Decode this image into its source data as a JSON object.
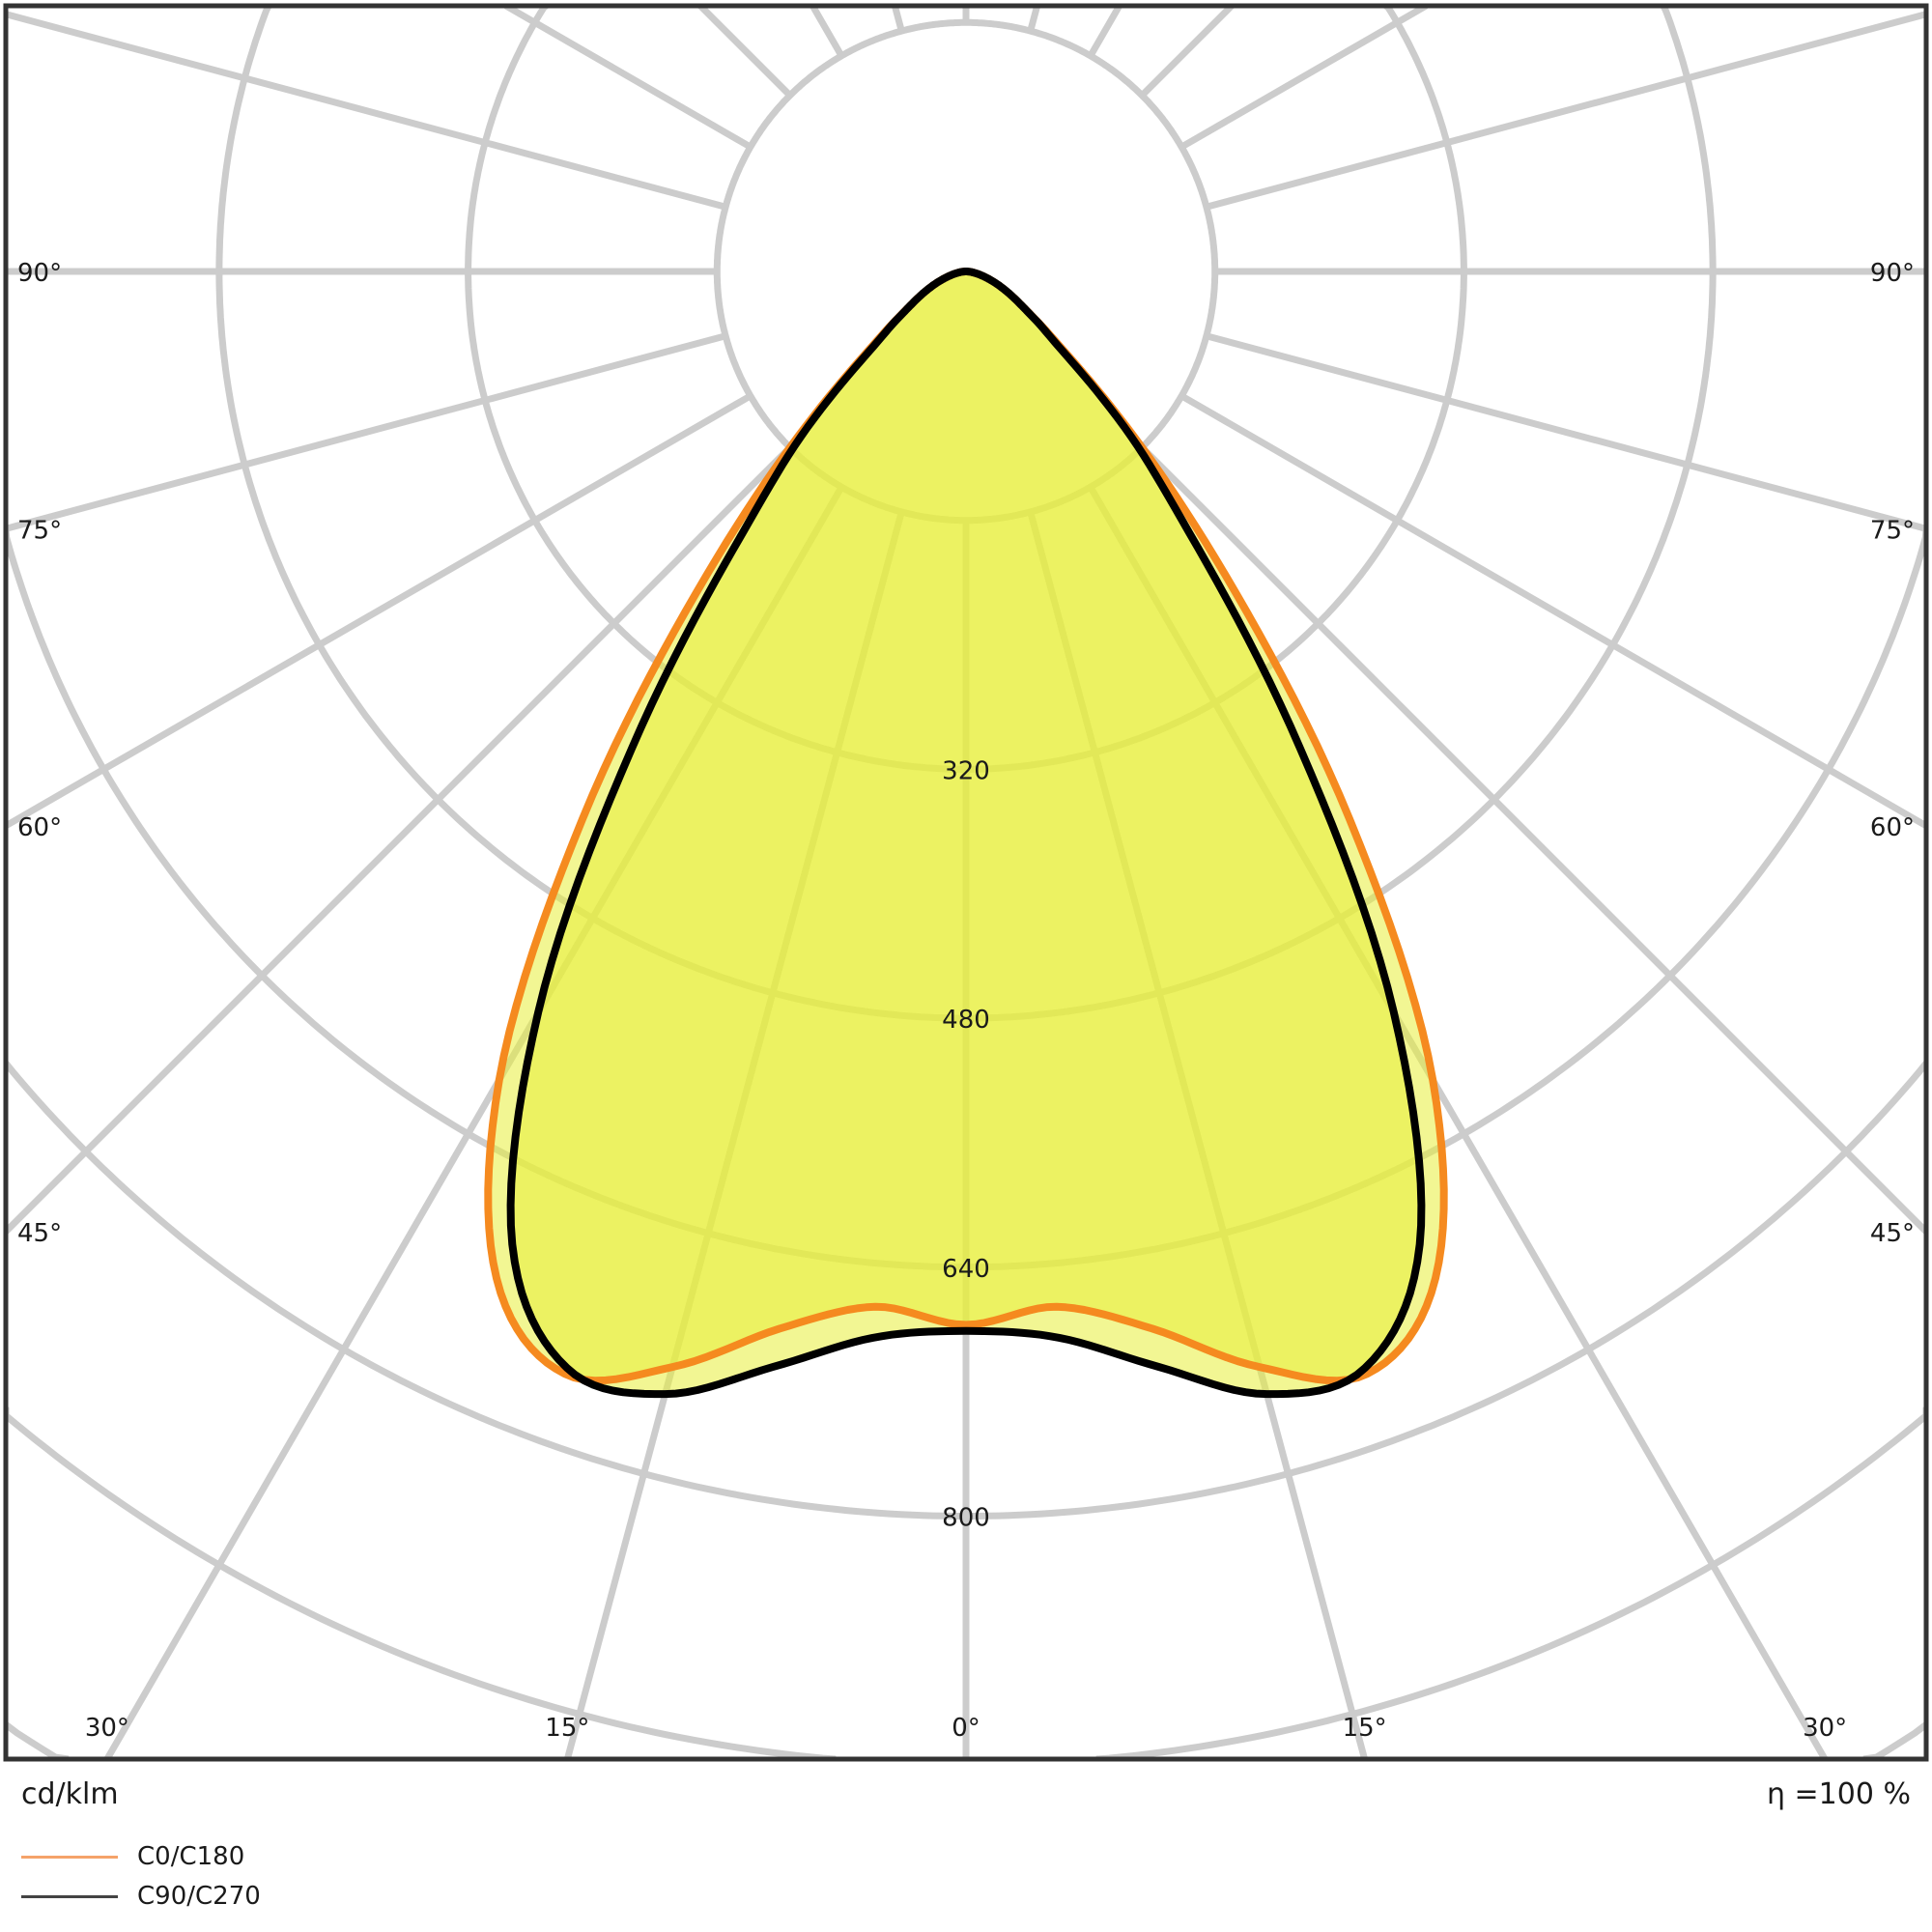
{
  "chart_data": {
    "type": "polar",
    "unit": "cd/klm",
    "efficiency": "η =100 %",
    "radial_ticks": [
      320,
      480,
      640,
      800
    ],
    "radial_grid_step": 160,
    "angle_grid_step_deg": 15,
    "angle_labels": {
      "left": [
        "90°",
        "75°",
        "60°",
        "45°"
      ],
      "right": [
        "90°",
        "75°",
        "60°",
        "45°"
      ],
      "bottom": [
        "30°",
        "15°",
        "0°",
        "15°",
        "30°"
      ]
    },
    "angles_deg": [
      0,
      5,
      10,
      15,
      20,
      25,
      30,
      35,
      40,
      45,
      50,
      55,
      60,
      70,
      80,
      90
    ],
    "series": [
      {
        "name": "C0/C180",
        "color": "#f58a1f",
        "values": [
          677,
          668,
          690,
          729,
          754,
          714,
          600,
          430,
          270,
          160,
          90,
          56,
          38,
          18,
          6,
          0
        ]
      },
      {
        "name": "C90/C270",
        "color": "#000000",
        "values": [
          681,
          688,
          715,
          747,
          750,
          690,
          550,
          375,
          232,
          150,
          85,
          55,
          38,
          18,
          6,
          0
        ]
      }
    ],
    "fill_color": "#e8ee3a",
    "grid_color": "#cccccc",
    "grid": true,
    "legend_placement": "bottom-left"
  }
}
